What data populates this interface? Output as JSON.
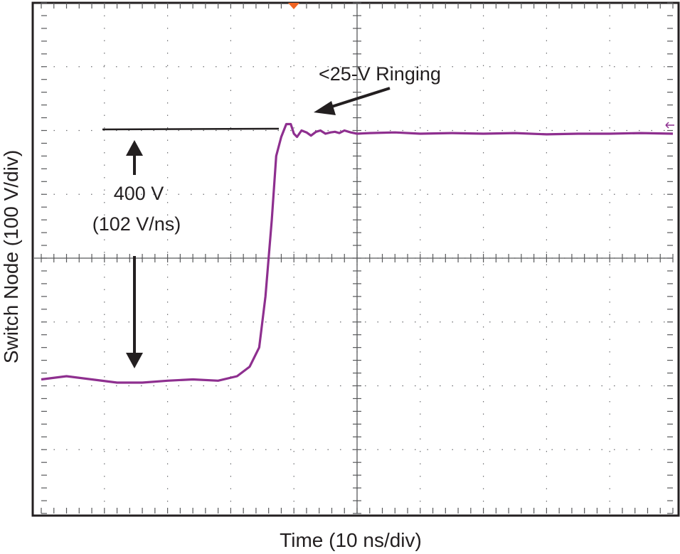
{
  "chart_data": {
    "type": "line",
    "xlabel": "Time (10 ns/div)",
    "ylabel": "Switch Node (100 V/div)",
    "x_divisions": 10,
    "y_divisions": 8,
    "grid": true,
    "trace_color": "#8e2f8f",
    "trigger_marker_color": "#f26522",
    "series": [
      {
        "values_note": "",
        "x": [
          0,
          0.4,
          0.8,
          1.2,
          1.6,
          2.0,
          2.4,
          2.8,
          3.1,
          3.3,
          3.45,
          3.55,
          3.65,
          3.72,
          3.8,
          3.88,
          3.95,
          4.0,
          4.05,
          4.12,
          4.2,
          4.27,
          4.35,
          4.42,
          4.5,
          4.58,
          4.65,
          4.72,
          4.8,
          4.9,
          5.0,
          5.2,
          5.6,
          6.0,
          6.5,
          7.0,
          7.5,
          8.0,
          8.5,
          9.0,
          9.5,
          10.0
        ],
        "y": [
          -1.9,
          -1.85,
          -1.9,
          -1.95,
          -1.95,
          -1.92,
          -1.9,
          -1.92,
          -1.85,
          -1.7,
          -1.4,
          -0.6,
          0.6,
          1.6,
          1.9,
          2.1,
          2.1,
          1.95,
          1.9,
          2.0,
          1.97,
          1.92,
          1.98,
          2.0,
          1.95,
          1.97,
          1.98,
          1.96,
          2.0,
          1.97,
          1.95,
          1.96,
          1.97,
          1.95,
          1.96,
          1.95,
          1.96,
          1.94,
          1.95,
          1.95,
          1.96,
          1.95
        ]
      }
    ],
    "annotations": {
      "ringing": "<25-V Ringing",
      "amplitude": "400 V",
      "slew_rate": "(102 V/ns)"
    }
  }
}
